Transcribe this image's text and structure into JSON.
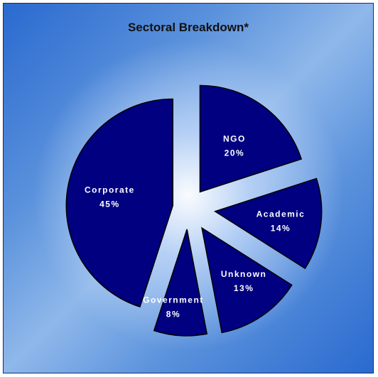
{
  "chart_data": {
    "type": "pie",
    "title": "Sectoral Breakdown*",
    "exploded": true,
    "slices": [
      {
        "label": "NGO",
        "value": 20,
        "display": "20%"
      },
      {
        "label": "Academic",
        "value": 14,
        "display": "14%"
      },
      {
        "label": "Unknown",
        "value": 13,
        "display": "13%"
      },
      {
        "label": "Government",
        "value": 8,
        "display": "8%"
      },
      {
        "label": "Corporate",
        "value": 45,
        "display": "45%"
      }
    ],
    "colors": {
      "slice_fill": "#000080",
      "slice_stroke": "#000000",
      "label": "#ffffff",
      "title": "#111111"
    }
  }
}
